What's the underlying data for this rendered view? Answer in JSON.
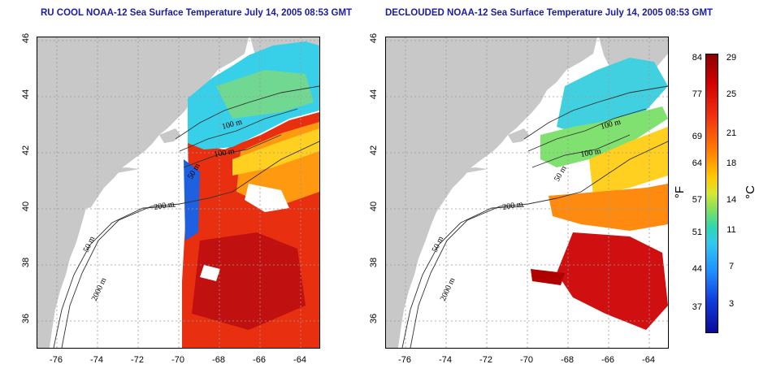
{
  "left_map": {
    "title": "RU COOL NOAA-12 Sea Surface Temperature July 14, 2005 08:53 GMT",
    "contours": [
      "100 m",
      "100 m",
      "200 m",
      "50 m",
      "2000 m",
      "50 m"
    ]
  },
  "right_map": {
    "title": "DECLOUDED NOAA-12 Sea Surface Temperature July 14, 2005 08:53 GMT",
    "contours": [
      "100 m",
      "100 m",
      "200 m",
      "50 m",
      "2000 m",
      "50 m"
    ]
  },
  "axes": {
    "x_ticks": [
      "-76",
      "-74",
      "-72",
      "-70",
      "-68",
      "-66",
      "-64"
    ],
    "y_ticks": [
      "46",
      "44",
      "42",
      "40",
      "38",
      "36"
    ],
    "lon_range": [
      -77,
      -63
    ],
    "lat_range": [
      35,
      46
    ],
    "grid": "dotted"
  },
  "colorbar": {
    "fahrenheit_label": "°F",
    "celsius_label": "°C",
    "fahrenheit_ticks": [
      "84",
      "77",
      "69",
      "64",
      "57",
      "51",
      "44",
      "37"
    ],
    "celsius_ticks": [
      "29",
      "25",
      "21",
      "18",
      "14",
      "11",
      "7",
      "3"
    ],
    "colors": [
      "#8b0000",
      "#d00000",
      "#ff7a00",
      "#ffc800",
      "#80e060",
      "#30c8f0",
      "#1e90ff",
      "#0a0a9a"
    ]
  }
}
